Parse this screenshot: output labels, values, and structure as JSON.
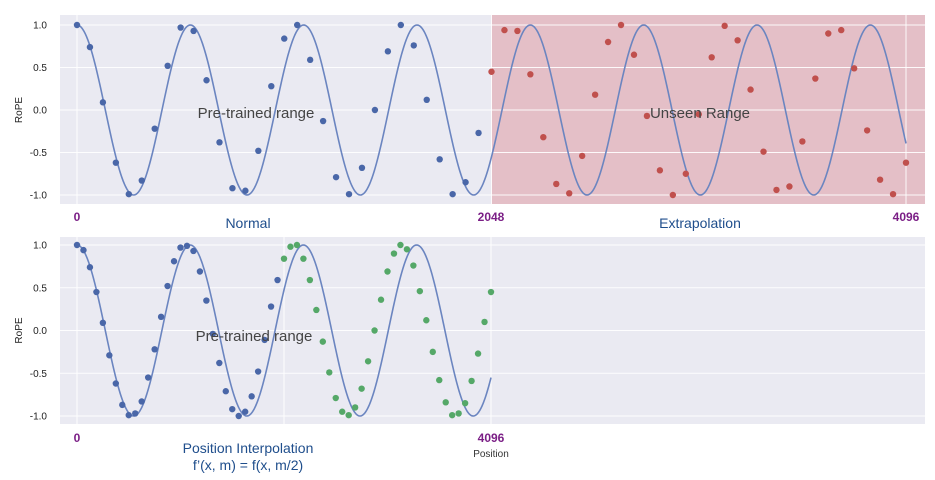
{
  "colors": {
    "panel_bg": "#eaeaf2",
    "grid": "#ffffff",
    "curve": "#6b85c0",
    "pretrained_point": "#4a67a8",
    "extrapolated_point": "#c0504d",
    "interpolated_point": "#55a868",
    "unseen_region": "#e3b7c0",
    "position_label": "#7b1f86",
    "section_label": "#1f4e8c"
  },
  "chart_data": [
    {
      "type": "line",
      "ylabel": "RoPE",
      "yticks": [
        "1.0",
        "0.5",
        "0.0",
        "-0.5",
        "-1.0"
      ],
      "ylim": [
        -1.1,
        1.1
      ],
      "xlim": [
        0,
        4096
      ],
      "curve_function": "cos(2*pi*x/560)",
      "grid": true,
      "shaded_region": {
        "x": [
          2048,
          4096
        ],
        "label": "Unseen Range"
      },
      "region_labels": [
        "Pre-trained range",
        "Unseen Range"
      ],
      "position_labels": [
        "0",
        "2048",
        "4096"
      ],
      "section_labels": [
        "Normal",
        "Extrapolation"
      ],
      "series": [
        {
          "marker": "pretrained",
          "x": [
            0,
            64,
            128,
            192,
            256,
            320,
            384,
            448,
            512,
            576,
            640,
            704,
            768,
            832,
            896,
            960,
            1024,
            1088,
            1152,
            1216,
            1280,
            1344,
            1408,
            1472,
            1536,
            1600,
            1664,
            1728,
            1792,
            1856,
            1920,
            1984
          ],
          "y": [
            1.0,
            0.74,
            0.09,
            -0.62,
            -0.99,
            -0.83,
            -0.22,
            0.52,
            0.97,
            0.93,
            0.35,
            -0.38,
            -0.92,
            -0.95,
            -0.48,
            0.28,
            0.84,
            1.0,
            0.59,
            -0.13,
            -0.79,
            -0.99,
            -0.68,
            0.0,
            0.69,
            1.0,
            0.76,
            0.12,
            -0.58,
            -0.99,
            -0.85,
            -0.27
          ]
        },
        {
          "marker": "extrapolated",
          "x": [
            2048,
            2112,
            2176,
            2240,
            2304,
            2368,
            2432,
            2496,
            2560,
            2624,
            2688,
            2752,
            2816,
            2880,
            2944,
            3008,
            3072,
            3136,
            3200,
            3264,
            3328,
            3392,
            3456,
            3520,
            3584,
            3648,
            3712,
            3776,
            3840,
            3904,
            3968,
            4032,
            4096
          ],
          "y": [
            0.45,
            0.94,
            0.93,
            0.42,
            -0.32,
            -0.87,
            -0.98,
            -0.54,
            0.18,
            0.8,
            1.0,
            0.65,
            -0.07,
            -0.71,
            -1.0,
            -0.75,
            -0.05,
            0.62,
            0.99,
            0.82,
            0.24,
            -0.49,
            -0.94,
            -0.9,
            -0.37,
            0.37,
            0.9,
            0.94,
            0.49,
            -0.24,
            -0.82,
            -0.99,
            -0.62
          ]
        }
      ]
    },
    {
      "type": "line",
      "ylabel": "RoPE",
      "yticks": [
        "1.0",
        "0.5",
        "0.0",
        "-0.5",
        "-1.0"
      ],
      "ylim": [
        -1.1,
        1.1
      ],
      "xlim": [
        0,
        4096
      ],
      "curve_function": "cos(2*pi*x/560)",
      "grid": true,
      "region_labels": [
        "Pre-trained range"
      ],
      "position_labels": [
        "0",
        "4096"
      ],
      "section_labels": [
        "Position Interpolation",
        "f’(x, m) = f(x, m/2)"
      ],
      "xlabel": "Position",
      "series": [
        {
          "marker": "pretrained",
          "x": [
            0,
            32,
            64,
            96,
            128,
            160,
            192,
            224,
            256,
            288,
            320,
            352,
            384,
            416,
            448,
            480,
            512,
            544,
            576,
            608,
            640,
            672,
            704,
            736,
            768,
            800,
            832,
            864,
            896,
            928,
            960,
            992
          ],
          "y": [
            1.0,
            0.94,
            0.74,
            0.45,
            0.09,
            -0.29,
            -0.62,
            -0.87,
            -0.99,
            -0.97,
            -0.83,
            -0.55,
            -0.22,
            0.16,
            0.52,
            0.81,
            0.97,
            0.99,
            0.93,
            0.69,
            0.35,
            -0.04,
            -0.38,
            -0.71,
            -0.92,
            -1.0,
            -0.95,
            -0.77,
            -0.48,
            -0.11,
            0.28,
            0.59
          ]
        },
        {
          "marker": "interpolated",
          "x": [
            1024,
            1056,
            1088,
            1120,
            1152,
            1184,
            1216,
            1248,
            1280,
            1312,
            1344,
            1376,
            1408,
            1440,
            1472,
            1504,
            1536,
            1568,
            1600,
            1632,
            1664,
            1696,
            1728,
            1760,
            1792,
            1824,
            1856,
            1888,
            1920,
            1952,
            1984,
            2016,
            2048
          ],
          "y": [
            0.84,
            0.98,
            1.0,
            0.84,
            0.59,
            0.24,
            -0.13,
            -0.49,
            -0.79,
            -0.95,
            -0.99,
            -0.9,
            -0.68,
            -0.36,
            0.0,
            0.36,
            0.69,
            0.9,
            1.0,
            0.95,
            0.76,
            0.46,
            0.12,
            -0.25,
            -0.58,
            -0.84,
            -0.99,
            -0.97,
            -0.85,
            -0.59,
            -0.27,
            0.1,
            0.45
          ]
        }
      ]
    }
  ]
}
